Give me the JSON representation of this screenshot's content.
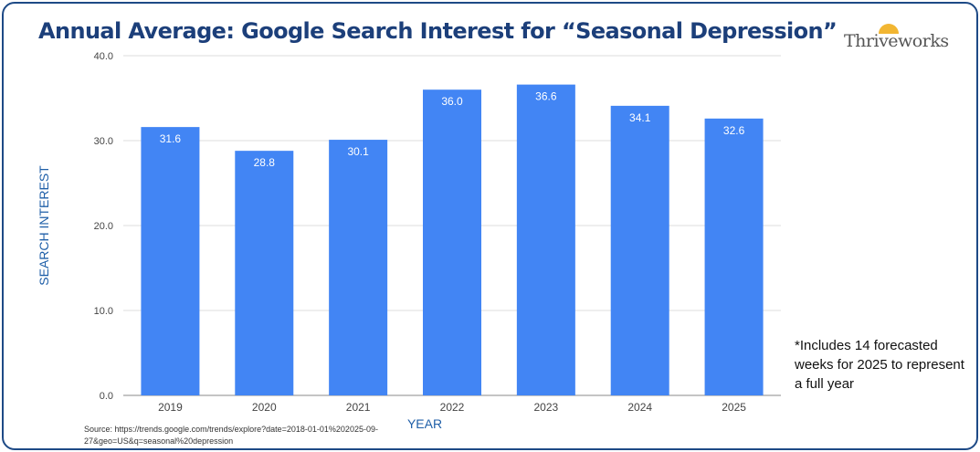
{
  "title": "Annual Average: Google Search Interest for “Seasonal Depression”",
  "logo": "Thriveworks",
  "note": "*Includes 14 forecasted weeks for 2025 to represent a full year",
  "source": "Source: https://trends.google.com/trends/explore?date=2018-01-01%202025-09-27&geo=US&q=seasonal%20depression",
  "colors": {
    "bar": "#4285f4",
    "title": "#1c3f7a",
    "border": "#1e4a86",
    "axis_label": "#1f5fa8"
  },
  "chart_data": {
    "type": "bar",
    "categories": [
      "2019",
      "2020",
      "2021",
      "2022",
      "2023",
      "2024",
      "2025"
    ],
    "values": [
      31.6,
      28.8,
      30.1,
      36.0,
      36.6,
      34.1,
      32.6
    ],
    "xlabel": "YEAR",
    "ylabel": "SEARCH INTEREST",
    "ylim": [
      0,
      40
    ],
    "yticks": [
      "0.0",
      "10.0",
      "20.0",
      "30.0",
      "40.0"
    ],
    "grid": true,
    "data_labels": true
  }
}
